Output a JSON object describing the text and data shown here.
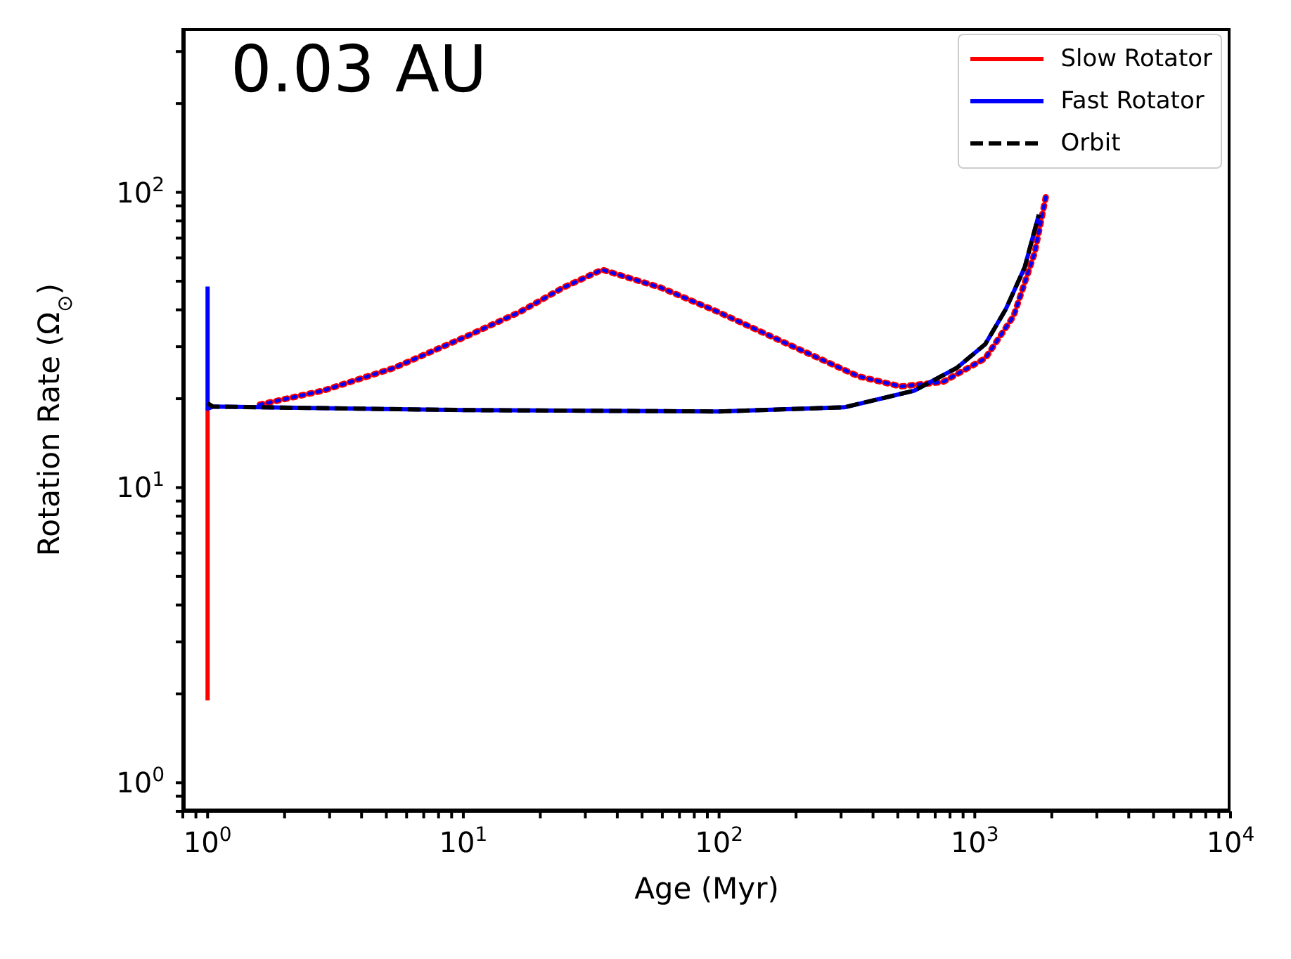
{
  "chart_data": {
    "type": "line",
    "xlabel": "Age (Myr)",
    "ylabel": "Rotation Rate (Ω$_{⊙}$)",
    "annotations": [
      "0.03 AU"
    ],
    "log": "xy",
    "legend": "top right",
    "grid": false,
    "marker": "none",
    "xlim": [
      0.8,
      10000
    ],
    "ylim": [
      0.8,
      360
    ],
    "xticks": [
      {
        "value": 1,
        "label": "10$^{0}$"
      },
      {
        "value": 10,
        "label": "10$^{1}$"
      },
      {
        "value": 100,
        "label": "10$^{2}$"
      },
      {
        "value": 1000,
        "label": "10$^{3}$"
      },
      {
        "value": 10000,
        "label": "10$^{4}$"
      },
      {
        "value": 0.8,
        "label": null
      },
      {
        "value": 0.9,
        "label": null
      },
      {
        "value": 2,
        "label": null
      },
      {
        "value": 3,
        "label": null
      },
      {
        "value": 4,
        "label": null
      },
      {
        "value": 5,
        "label": null
      },
      {
        "value": 6,
        "label": null
      },
      {
        "value": 7,
        "label": null
      },
      {
        "value": 8,
        "label": null
      },
      {
        "value": 9,
        "label": null
      },
      {
        "value": 20,
        "label": null
      },
      {
        "value": 30,
        "label": null
      },
      {
        "value": 40,
        "label": null
      },
      {
        "value": 50,
        "label": null
      },
      {
        "value": 60,
        "label": null
      },
      {
        "value": 70,
        "label": null
      },
      {
        "value": 80,
        "label": null
      },
      {
        "value": 90,
        "label": null
      },
      {
        "value": 200,
        "label": null
      },
      {
        "value": 300,
        "label": null
      },
      {
        "value": 400,
        "label": null
      },
      {
        "value": 500,
        "label": null
      },
      {
        "value": 600,
        "label": null
      },
      {
        "value": 700,
        "label": null
      },
      {
        "value": 800,
        "label": null
      },
      {
        "value": 900,
        "label": null
      },
      {
        "value": 2000,
        "label": null
      },
      {
        "value": 3000,
        "label": null
      },
      {
        "value": 4000,
        "label": null
      },
      {
        "value": 5000,
        "label": null
      },
      {
        "value": 6000,
        "label": null
      },
      {
        "value": 7000,
        "label": null
      },
      {
        "value": 8000,
        "label": null
      },
      {
        "value": 9000,
        "label": null
      }
    ],
    "yticks": [
      {
        "value": 1,
        "label": "10$^{0}$"
      },
      {
        "value": 10,
        "label": "10$^{1}$"
      },
      {
        "value": 100,
        "label": "10$^{2}$"
      },
      {
        "value": 0.8,
        "label": null
      },
      {
        "value": 0.9,
        "label": null
      },
      {
        "value": 2,
        "label": null
      },
      {
        "value": 3,
        "label": null
      },
      {
        "value": 4,
        "label": null
      },
      {
        "value": 5,
        "label": null
      },
      {
        "value": 6,
        "label": null
      },
      {
        "value": 7,
        "label": null
      },
      {
        "value": 8,
        "label": null
      },
      {
        "value": 9,
        "label": null
      },
      {
        "value": 20,
        "label": null
      },
      {
        "value": 30,
        "label": null
      },
      {
        "value": 40,
        "label": null
      },
      {
        "value": 50,
        "label": null
      },
      {
        "value": 60,
        "label": null
      },
      {
        "value": 70,
        "label": null
      },
      {
        "value": 80,
        "label": null
      },
      {
        "value": 90,
        "label": null
      },
      {
        "value": 200,
        "label": null
      },
      {
        "value": 300,
        "label": null
      }
    ],
    "series": [
      {
        "name": "Slow Rotator",
        "color": "#ff0000",
        "line_style": "solid",
        "x": [
          1,
          1
        ],
        "values": [
          1.9,
          18.5
        ]
      },
      {
        "line_style": "dotted",
        "color": "#ff0000",
        "x": [
          1.6,
          2.83,
          5.34,
          10.1,
          16.7,
          24.5,
          34.9,
          59.4,
          98.7,
          186,
          351,
          514,
          752,
          1099,
          1418,
          1715,
          1897
        ],
        "values": [
          19.1,
          21.3,
          25.4,
          32.3,
          39.4,
          47.5,
          54.7,
          47.5,
          39.4,
          30.6,
          23.8,
          22,
          22.8,
          27.4,
          38.1,
          62.4,
          96.8
        ]
      },
      {
        "name": "Fast Rotator",
        "color": "#0000ff",
        "line_style": "solid",
        "x": [
          1,
          1,
          1.05,
          10,
          100,
          309,
          580,
          849,
          1099,
          1322,
          1567,
          1780
        ],
        "values": [
          48,
          18.5,
          18.8,
          18.3,
          18.1,
          18.7,
          21.3,
          25.4,
          30.6,
          40.2,
          55.7,
          84
        ]
      },
      {
        "line_style": "dotted",
        "color": "#0000ff",
        "x": [
          1.6,
          2.83,
          5.34,
          10.1,
          16.7,
          24.5,
          34.9,
          59.4,
          98.7,
          186,
          351,
          514,
          752,
          1099,
          1418,
          1715,
          1897
        ],
        "values": [
          19.1,
          21.3,
          25.4,
          32.3,
          39.4,
          47.5,
          54.7,
          47.5,
          39.4,
          30.6,
          23.8,
          22,
          22.8,
          27.4,
          38.1,
          62.4,
          96.8
        ]
      },
      {
        "name": "Orbit",
        "color": "#000000",
        "line_style": "dashed",
        "x": [
          1,
          1.05,
          10,
          100,
          309,
          580,
          849,
          1099,
          1322,
          1567,
          1780
        ],
        "values": [
          19.3,
          18.8,
          18.3,
          18.1,
          18.7,
          21.3,
          25.4,
          30.6,
          40.2,
          55.7,
          84
        ]
      }
    ]
  }
}
